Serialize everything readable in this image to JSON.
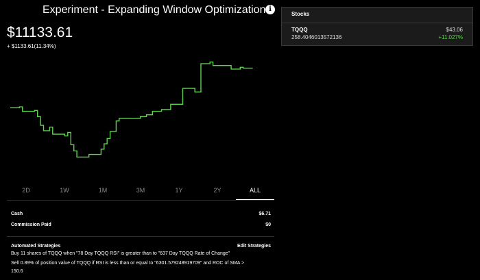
{
  "header": {
    "title": "Experiment - Expanding Window Optimization",
    "info_icon": "info-icon"
  },
  "portfolio": {
    "value": "$11133.61",
    "change": "+ $1133.61(11.34%)"
  },
  "chart_data": {
    "type": "line",
    "title": "",
    "xlabel": "",
    "ylabel": "",
    "series": [
      {
        "color": "#5fd34f",
        "x": [
          0,
          1,
          2,
          3,
          4,
          5,
          6,
          7,
          8,
          9,
          10,
          11,
          12,
          13,
          14,
          15,
          16,
          17,
          18,
          19,
          20,
          21,
          22,
          23,
          24,
          25,
          26,
          27,
          28,
          29,
          30,
          31,
          32,
          33,
          34,
          35,
          36,
          37,
          38,
          39,
          40,
          41,
          42,
          43,
          44,
          45,
          46,
          47,
          48,
          49,
          50,
          51,
          52,
          53,
          54,
          55,
          56,
          57,
          58,
          59,
          60,
          61,
          62,
          63,
          64,
          65,
          66,
          67,
          68,
          69,
          70,
          71,
          72,
          73,
          74,
          75,
          76,
          77,
          78,
          79,
          80
        ],
        "values": [
          10680,
          10680,
          10680,
          10690,
          10640,
          10640,
          10640,
          10640,
          10650,
          10580,
          10480,
          10420,
          10420,
          10460,
          10380,
          10380,
          10380,
          10380,
          10360,
          10400,
          10260,
          10190,
          10120,
          10120,
          10120,
          10120,
          10150,
          10150,
          10150,
          10150,
          10210,
          10270,
          10330,
          10410,
          10410,
          10530,
          10560,
          10560,
          10560,
          10560,
          10560,
          10560,
          10560,
          10580,
          10580,
          10600,
          10600,
          10640,
          10640,
          10640,
          10660,
          10660,
          10660,
          10720,
          10720,
          10720,
          10720,
          10900,
          10900,
          10900,
          10900,
          10860,
          10860,
          11180,
          11180,
          11180,
          11200,
          11160,
          11160,
          11160,
          11160,
          11160,
          11160,
          11120,
          11120,
          11120,
          11140,
          11130,
          11130,
          11130,
          11133.61
        ]
      }
    ]
  },
  "range_tabs": [
    "2D",
    "1W",
    "1M",
    "3M",
    "1Y",
    "2Y",
    "ALL"
  ],
  "active_tab": "ALL",
  "account": {
    "cash_label": "Cash",
    "cash_value": "$6.71",
    "commission_label": "Commission Paid",
    "commission_value": "$0"
  },
  "strategies": {
    "title": "Automated Strategies",
    "edit_label": "Edit Strategies",
    "lines": [
      "Buy 11 shares of TQQQ when \"78 Day TQQQ RSI\" is greater than to \"637 Day TQQQ Rate of Change\"",
      "Sell 0.89% of position value of TQQQ if RSI is less than or equal to \"6301.579248919709\" and ROC of SMA >",
      "150.6"
    ]
  },
  "stocks": {
    "title": "Stocks",
    "items": [
      {
        "symbol": "TQQQ",
        "quantity": "258.4046013572136",
        "price": "$43.06",
        "change": "+11.027%",
        "change_color": "#5fd34f"
      }
    ]
  }
}
